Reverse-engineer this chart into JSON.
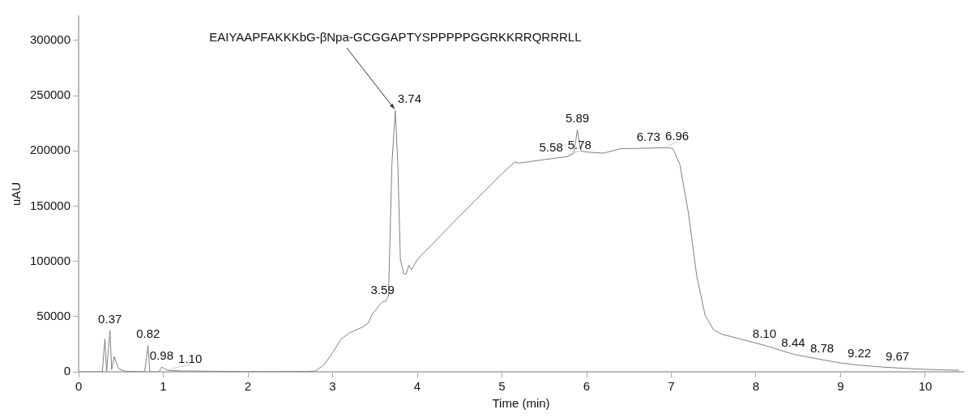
{
  "chart_data": {
    "type": "line",
    "xlabel": "Time (min)",
    "ylabel": "uAU",
    "color": "#808080",
    "x": [
      0,
      0.28,
      0.31,
      0.33,
      0.37,
      0.39,
      0.42,
      0.47,
      0.55,
      0.78,
      0.82,
      0.84,
      0.95,
      0.98,
      1.05,
      1.2,
      2.0,
      2.7,
      2.8,
      2.9,
      3.0,
      3.1,
      3.2,
      3.35,
      3.42,
      3.47,
      3.52,
      3.55,
      3.59,
      3.63,
      3.66,
      3.7,
      3.74,
      3.77,
      3.8,
      3.84,
      3.87,
      3.9,
      3.93,
      4.0,
      4.5,
      5.0,
      5.15,
      5.2,
      5.58,
      5.78,
      5.85,
      5.89,
      5.93,
      6.0,
      6.2,
      6.4,
      6.73,
      6.96,
      7.02,
      7.1,
      7.2,
      7.3,
      7.4,
      7.5,
      7.6,
      8.0,
      8.1,
      8.44,
      8.5,
      8.78,
      9.0,
      9.22,
      9.5,
      9.67,
      10.0,
      10.4
    ],
    "values": [
      0,
      0,
      29600,
      0,
      37500,
      2000,
      13700,
      3000,
      500,
      0,
      23800,
      0,
      0,
      4300,
      1500,
      800,
      200,
      300,
      800,
      6500,
      17300,
      29600,
      35300,
      40400,
      44000,
      52600,
      57000,
      60500,
      63400,
      64000,
      69000,
      188000,
      236500,
      188000,
      101700,
      88700,
      88700,
      96600,
      92300,
      101700,
      141000,
      179500,
      190000,
      189000,
      193000,
      195000,
      198000,
      219000,
      200000,
      199000,
      198000,
      202000,
      202500,
      203000,
      202000,
      188000,
      145000,
      87000,
      51000,
      38000,
      34000,
      26000,
      24000,
      16000,
      15000,
      11000,
      8000,
      6000,
      4300,
      3500,
      2200,
      1400
    ],
    "xlim": [
      0,
      10.45
    ],
    "ylim": [
      0,
      322000
    ],
    "xticks": [
      0,
      1,
      2,
      3,
      4,
      5,
      6,
      7,
      8,
      9,
      10
    ],
    "yticks": [
      0,
      50000,
      100000,
      150000,
      200000,
      250000,
      300000
    ],
    "grid": false,
    "legend": false,
    "marker": "none",
    "line_style": "solid",
    "annotations": [
      {
        "text": "EAIYAAPFAKKKbG-βNpa-GCGGAPTYSPPPPPGGRKKRRQRRRLL",
        "x": 3.74,
        "y": 236500
      },
      {
        "text": "0.37",
        "x": 0.37,
        "y": 37500
      },
      {
        "text": "0.82",
        "x": 0.82,
        "y": 23800
      },
      {
        "text": "0.98",
        "x": 0.98,
        "y": 4300
      },
      {
        "text": "1.10",
        "x": 1.1,
        "y": 1500
      },
      {
        "text": "3.59",
        "x": 3.59,
        "y": 63400
      },
      {
        "text": "3.74",
        "x": 3.74,
        "y": 236500
      },
      {
        "text": "5.58",
        "x": 5.58,
        "y": 193000
      },
      {
        "text": "5.78",
        "x": 5.78,
        "y": 195000
      },
      {
        "text": "5.89",
        "x": 5.89,
        "y": 219000
      },
      {
        "text": "6.73",
        "x": 6.73,
        "y": 202500
      },
      {
        "text": "6.96",
        "x": 6.96,
        "y": 203000
      },
      {
        "text": "8.10",
        "x": 8.1,
        "y": 24000
      },
      {
        "text": "8.44",
        "x": 8.44,
        "y": 16000
      },
      {
        "text": "8.78",
        "x": 8.78,
        "y": 11000
      },
      {
        "text": "9.22",
        "x": 9.22,
        "y": 6000
      },
      {
        "text": "9.67",
        "x": 9.67,
        "y": 3500
      }
    ]
  }
}
